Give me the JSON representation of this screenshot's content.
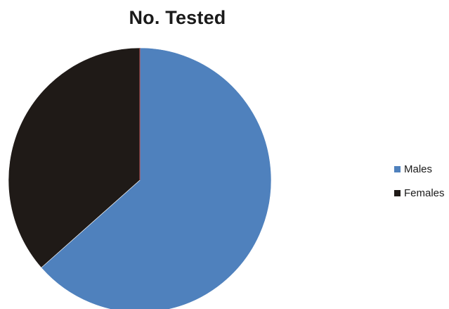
{
  "chart_data": {
    "type": "pie",
    "title": "No. Tested",
    "slices": [
      {
        "label": "Males",
        "value": 63.5,
        "color": "#4f81bd"
      },
      {
        "label": "Females",
        "value": 36.5,
        "color": "#1f1a17"
      }
    ],
    "legend_position": "right"
  }
}
